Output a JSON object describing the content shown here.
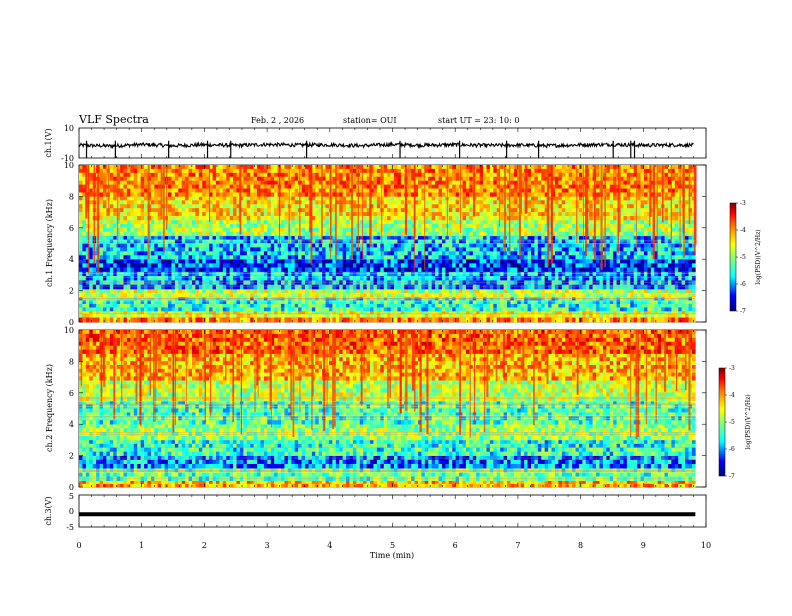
{
  "header": {
    "title": "VLF Spectra",
    "date": "Feb. 2 , 2026",
    "station": "station= OUI",
    "start": "start UT = 23: 10: 0"
  },
  "chart_data": [
    {
      "type": "line",
      "name": "ch1-waveform",
      "ylabel": "ch.1(V)",
      "ylim": [
        -10,
        10
      ],
      "y_ticks": [
        "10",
        "-10"
      ],
      "xlim": [
        0,
        10
      ],
      "x": [
        0,
        0.5,
        1,
        1.5,
        2,
        2.5,
        3,
        3.5,
        4,
        4.5,
        5,
        5.5,
        6,
        6.5,
        7,
        7.5,
        8,
        8.5,
        9,
        9.5,
        9.8
      ],
      "y": [
        -1.5,
        -2.0,
        -1.0,
        -1.8,
        -1.2,
        -1.6,
        -1.0,
        -1.4,
        -1.2,
        -1.8,
        -1.0,
        -1.5,
        -1.2,
        -1.6,
        -1.4,
        -1.8,
        -1.2,
        -1.0,
        -1.5,
        -1.3,
        -1.4
      ],
      "spikes_min": [
        0.12,
        0.58,
        1.43,
        2.05,
        2.42,
        3.63,
        5.12,
        6.07,
        6.82,
        7.33,
        8.52,
        8.8,
        8.86
      ]
    },
    {
      "type": "heatmap",
      "name": "ch1-spectrogram",
      "ylabel": "ch.1  Frequency  (kHz)",
      "ylim": [
        0,
        10
      ],
      "y_ticks": [
        "0",
        "2",
        "4",
        "6",
        "8",
        "10"
      ],
      "xlim": [
        0,
        9.83
      ],
      "colorbar": {
        "label": "log(PSD)(V^2/Hz)",
        "ticks": [
          "-3",
          "-4",
          "-5",
          "-6",
          "-7"
        ],
        "range": [
          -7,
          -3
        ]
      },
      "bands": [
        {
          "f": [
            0,
            0.3
          ],
          "level": -4.2
        },
        {
          "f": [
            0.3,
            0.7
          ],
          "level": -4.8
        },
        {
          "f": [
            0.7,
            1.6
          ],
          "level": -5.6
        },
        {
          "f": [
            1.6,
            2.1
          ],
          "level": -5.0
        },
        {
          "f": [
            2.1,
            3.2
          ],
          "level": -6.0
        },
        {
          "f": [
            3.2,
            4.0
          ],
          "level": -6.4
        },
        {
          "f": [
            4.0,
            5.5
          ],
          "level": -5.9
        },
        {
          "f": [
            5.5,
            6.5
          ],
          "level": -5.1
        },
        {
          "f": [
            6.5,
            8.0
          ],
          "level": -4.6
        },
        {
          "f": [
            8.0,
            10.0
          ],
          "level": -4.2
        }
      ]
    },
    {
      "type": "heatmap",
      "name": "ch2-spectrogram",
      "ylabel": "ch.2  Frequency  (kHz)",
      "ylim": [
        0,
        10
      ],
      "y_ticks": [
        "0",
        "2",
        "4",
        "6",
        "8",
        "10"
      ],
      "xlim": [
        0,
        9.83
      ],
      "colorbar": {
        "label": "log(PSD)(V^2/Hz)",
        "ticks": [
          "-3",
          "-4",
          "-5",
          "-6",
          "-7"
        ],
        "range": [
          -7,
          -3
        ]
      },
      "bands": [
        {
          "f": [
            0,
            0.4
          ],
          "level": -4.4
        },
        {
          "f": [
            0.4,
            1.2
          ],
          "level": -5.4
        },
        {
          "f": [
            1.2,
            2.0
          ],
          "level": -6.1
        },
        {
          "f": [
            2.0,
            3.0
          ],
          "level": -5.6
        },
        {
          "f": [
            3.0,
            4.0
          ],
          "level": -5.2
        },
        {
          "f": [
            4.0,
            5.5
          ],
          "level": -5.5
        },
        {
          "f": [
            5.5,
            6.8
          ],
          "level": -5.0
        },
        {
          "f": [
            6.8,
            8.5
          ],
          "level": -4.4
        },
        {
          "f": [
            8.5,
            10.0
          ],
          "level": -4.0
        }
      ]
    },
    {
      "type": "line",
      "name": "ch3-waveform",
      "ylabel": "ch.3(V)",
      "ylim": [
        -5,
        5
      ],
      "y_ticks": [
        "5",
        "0",
        "-5"
      ],
      "xlim": [
        0,
        10
      ],
      "x": [
        0,
        9.83
      ],
      "y": [
        -1,
        -1
      ]
    }
  ],
  "xaxis": {
    "label": "Time  (min)",
    "ticks": [
      "0",
      "1",
      "2",
      "3",
      "4",
      "5",
      "6",
      "7",
      "8",
      "9",
      "10"
    ],
    "range": [
      0,
      10
    ]
  },
  "colors": {
    "colormap": [
      "#00007f",
      "#0000ff",
      "#00ffff",
      "#7fff7f",
      "#ffff00",
      "#ff7f00",
      "#ff0000",
      "#7f0000"
    ]
  }
}
